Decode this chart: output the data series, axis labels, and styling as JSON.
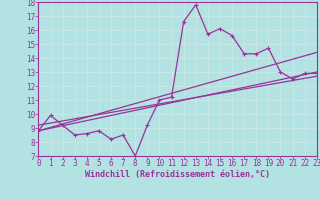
{
  "xlabel": "Windchill (Refroidissement éolien,°C)",
  "bg_color": "#b2e2e2",
  "line_color": "#993399",
  "grid_color": "#c8e8e8",
  "xmin": 0,
  "xmax": 23,
  "ymin": 7,
  "ymax": 18,
  "line1_x": [
    0,
    1,
    2,
    3,
    4,
    5,
    6,
    7,
    8,
    9,
    10,
    11,
    12,
    13,
    14,
    15,
    16,
    17,
    18,
    19,
    20,
    21,
    22,
    23
  ],
  "line1_y": [
    8.8,
    9.9,
    9.2,
    8.5,
    8.6,
    8.8,
    8.2,
    8.5,
    7.0,
    9.2,
    11.0,
    11.2,
    16.6,
    17.8,
    15.7,
    16.1,
    15.6,
    14.3,
    14.3,
    14.7,
    13.0,
    12.5,
    12.9,
    12.9
  ],
  "line2_x": [
    0,
    23
  ],
  "line2_y": [
    8.8,
    14.4
  ],
  "line3_x": [
    0,
    23
  ],
  "line3_y": [
    9.2,
    12.7
  ],
  "line4_x": [
    0,
    23
  ],
  "line4_y": [
    8.8,
    13.0
  ],
  "xlabel_fontsize": 6,
  "tick_fontsize": 5.5,
  "line_width": 0.9,
  "marker_size": 3
}
